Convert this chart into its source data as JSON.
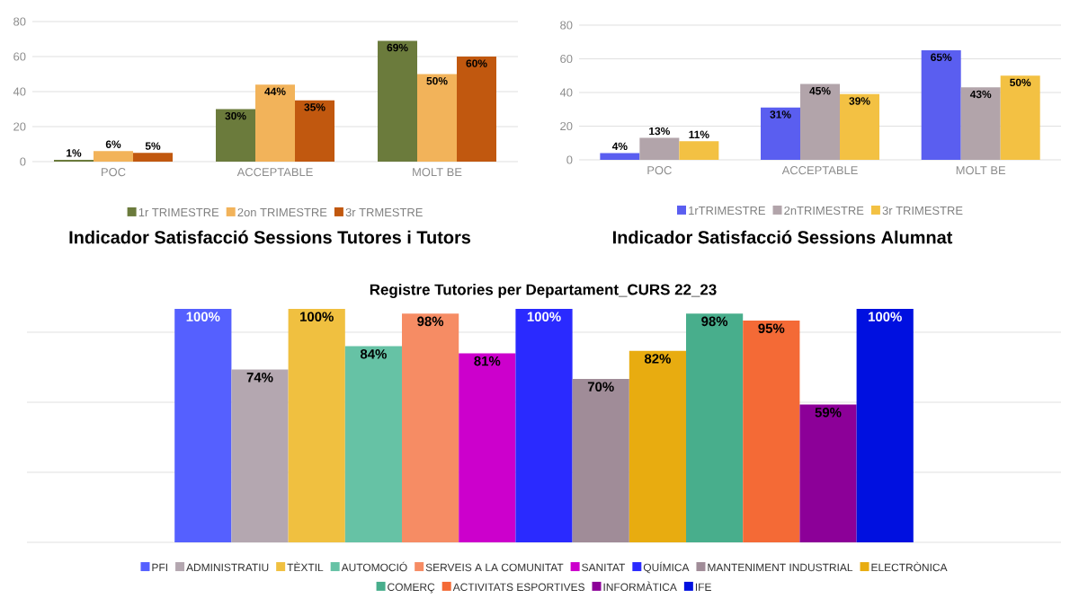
{
  "chart_data": [
    {
      "type": "bar",
      "title": "Indicador Satisfacció Sessions Tutores i Tutors",
      "categories": [
        "POC",
        "ACCEPTABLE",
        "MOLT BE"
      ],
      "series": [
        {
          "name": "1r TRIMESTRE",
          "color": "#6b7b3c",
          "values": [
            1,
            30,
            69
          ],
          "value_labels": [
            "1%",
            "30%",
            "69%"
          ]
        },
        {
          "name": "2on TRIMESTRE",
          "color": "#f2b35a",
          "values": [
            6,
            44,
            50
          ],
          "value_labels": [
            "6%",
            "44%",
            "50%"
          ]
        },
        {
          "name": "3r TRMESTRE",
          "color": "#c1580f",
          "values": [
            5,
            35,
            60
          ],
          "value_labels": [
            "5%",
            "35%",
            "60%"
          ]
        }
      ],
      "ylim": [
        0,
        80
      ],
      "yticks": [
        0,
        20,
        40,
        60,
        80
      ],
      "grid": "y",
      "legend": "bottom"
    },
    {
      "type": "bar",
      "title": "Indicador Satisfacció Sessions Alumnat",
      "categories": [
        "POC",
        "ACCEPTABLE",
        "MOLT BE"
      ],
      "series": [
        {
          "name": "1rTRIMESTRE",
          "color": "#5a5ef0",
          "values": [
            4,
            31,
            65
          ],
          "value_labels": [
            "4%",
            "31%",
            "65%"
          ]
        },
        {
          "name": "2nTRIMESTRE",
          "color": "#b2a4aa",
          "values": [
            13,
            45,
            43
          ],
          "value_labels": [
            "13%",
            "45%",
            "43%"
          ]
        },
        {
          "name": "3r TRIMESTRE",
          "color": "#f3c143",
          "values": [
            11,
            39,
            50
          ],
          "value_labels": [
            "11%",
            "39%",
            "50%"
          ]
        }
      ],
      "ylim": [
        0,
        80
      ],
      "yticks": [
        0,
        20,
        40,
        60,
        80
      ],
      "grid": "y",
      "legend": "bottom"
    },
    {
      "type": "bar",
      "title": "Registre Tutories per Departament_CURS 22_23",
      "categories": [
        null
      ],
      "series": [
        {
          "name": "PFI",
          "color": "#5560ff",
          "values": [
            100
          ],
          "value_labels": [
            "100%"
          ]
        },
        {
          "name": "ADMINISTRATIU",
          "color": "#b4a7b0",
          "values": [
            74
          ],
          "value_labels": [
            "74%"
          ]
        },
        {
          "name": "TÈXTIL",
          "color": "#f0c040",
          "values": [
            100
          ],
          "value_labels": [
            "100%"
          ]
        },
        {
          "name": "AUTOMOCIÓ",
          "color": "#66c2a5",
          "values": [
            84
          ],
          "value_labels": [
            "84%"
          ]
        },
        {
          "name": "SERVEIS A LA COMUNITAT",
          "color": "#f68c64",
          "values": [
            98
          ],
          "value_labels": [
            "98%"
          ]
        },
        {
          "name": "SANITAT",
          "color": "#cc00cc",
          "values": [
            81
          ],
          "value_labels": [
            "81%"
          ]
        },
        {
          "name": "QUÍMICA",
          "color": "#2a2aff",
          "values": [
            100
          ],
          "value_labels": [
            "100%"
          ]
        },
        {
          "name": "MANTENIMENT INDUSTRIAL",
          "color": "#a08c98",
          "values": [
            70
          ],
          "value_labels": [
            "70%"
          ]
        },
        {
          "name": "ELECTRÒNICA",
          "color": "#e8ac10",
          "values": [
            82
          ],
          "value_labels": [
            "82%"
          ]
        },
        {
          "name": "COMERÇ",
          "color": "#48ae8c",
          "values": [
            98
          ],
          "value_labels": [
            "98%"
          ]
        },
        {
          "name": "ACTIVITATS ESPORTIVES",
          "color": "#f46a36",
          "values": [
            95
          ],
          "value_labels": [
            "95%"
          ]
        },
        {
          "name": "INFORMÀTICA",
          "color": "#8c0098",
          "values": [
            59
          ],
          "value_labels": [
            "59%"
          ]
        },
        {
          "name": "IFE",
          "color": "#0010e0",
          "values": [
            100
          ],
          "value_labels": [
            "100%"
          ]
        }
      ],
      "ylim": [
        0,
        100
      ],
      "yticks": [
        {
          "value": 0,
          "label": null
        },
        {
          "value": 30,
          "label": null
        },
        {
          "value": 60,
          "label": null
        },
        {
          "value": 90,
          "label": null
        }
      ],
      "grid": "y",
      "legend": "bottom"
    }
  ]
}
